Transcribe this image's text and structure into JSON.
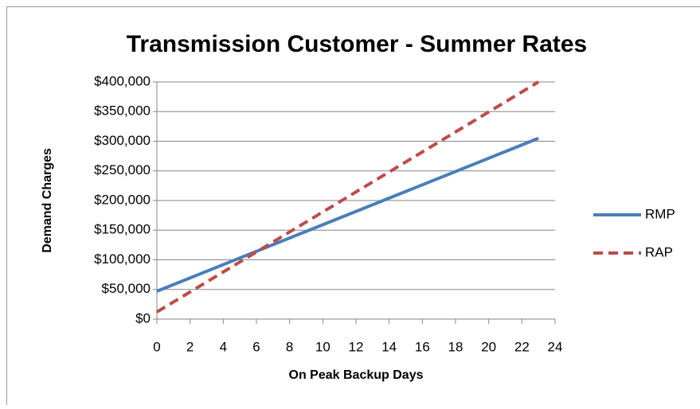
{
  "chart_data": {
    "type": "line",
    "title": "Transmission Customer - Summer Rates",
    "x_label": "On Peak Backup Days",
    "y_label": "Demand Charges",
    "x": [
      0,
      23
    ],
    "series": [
      {
        "name": "RMP",
        "color": "#4a7ebb",
        "dashed": false,
        "values": [
          47000,
          305000
        ]
      },
      {
        "name": "RAP",
        "color": "#be4b48",
        "dashed": true,
        "values": [
          12000,
          400000
        ]
      }
    ],
    "xlim": [
      0,
      24
    ],
    "xticks": [
      0,
      2,
      4,
      6,
      8,
      10,
      12,
      14,
      16,
      18,
      20,
      22,
      24
    ],
    "ylim": [
      0,
      400000
    ],
    "yticks": [
      {
        "value": 0,
        "label": "$0"
      },
      {
        "value": 50000,
        "label": "$50,000"
      },
      {
        "value": 100000,
        "label": "$100,000"
      },
      {
        "value": 150000,
        "label": "$150,000"
      },
      {
        "value": 200000,
        "label": "$200,000"
      },
      {
        "value": 250000,
        "label": "$250,000"
      },
      {
        "value": 300000,
        "label": "$300,000"
      },
      {
        "value": 350000,
        "label": "$350,000"
      },
      {
        "value": 400000,
        "label": "$400,000"
      }
    ],
    "grid": true,
    "legend": "right"
  }
}
